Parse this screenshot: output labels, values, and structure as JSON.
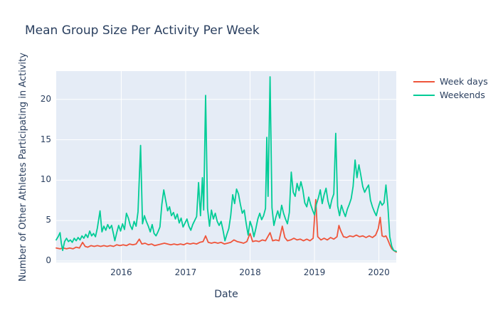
{
  "chart_data": {
    "type": "line",
    "title": "Mean Group Size Per Activity Per Week",
    "xlabel": "Date",
    "ylabel": "Number of Other Athletes Participating in Activity",
    "x_range": [
      2014.99,
      2020.27
    ],
    "y_range": [
      -0.18,
      23.5
    ],
    "x_ticks": [
      2016,
      2017,
      2018,
      2019,
      2020
    ],
    "x_tick_labels": [
      "2016",
      "2017",
      "2018",
      "2019",
      "2020"
    ],
    "y_ticks": [
      0,
      5,
      10,
      15,
      20
    ],
    "y_tick_labels": [
      "0",
      "5",
      "10",
      "15",
      "20"
    ],
    "grid": true,
    "legend_position": "outside-top-right",
    "plot_bg": "#E5ECF6",
    "grid_color": "#FFFFFF",
    "text_color": "#2A3F5F",
    "series": [
      {
        "name": "Week days",
        "color": "#EF553B",
        "points": [
          [
            2014.99,
            1.6
          ],
          [
            2015.05,
            1.5
          ],
          [
            2015.1,
            1.6
          ],
          [
            2015.15,
            1.5
          ],
          [
            2015.2,
            1.6
          ],
          [
            2015.25,
            1.5
          ],
          [
            2015.3,
            1.7
          ],
          [
            2015.35,
            1.6
          ],
          [
            2015.4,
            2.3
          ],
          [
            2015.44,
            1.8
          ],
          [
            2015.48,
            1.7
          ],
          [
            2015.53,
            1.9
          ],
          [
            2015.58,
            1.8
          ],
          [
            2015.63,
            1.9
          ],
          [
            2015.68,
            1.8
          ],
          [
            2015.73,
            1.9
          ],
          [
            2015.78,
            1.8
          ],
          [
            2015.83,
            1.9
          ],
          [
            2015.88,
            1.8
          ],
          [
            2015.93,
            2.0
          ],
          [
            2015.98,
            1.9
          ],
          [
            2016.03,
            2.0
          ],
          [
            2016.08,
            1.9
          ],
          [
            2016.13,
            2.1
          ],
          [
            2016.18,
            2.0
          ],
          [
            2016.23,
            2.1
          ],
          [
            2016.28,
            2.7
          ],
          [
            2016.32,
            2.1
          ],
          [
            2016.37,
            2.2
          ],
          [
            2016.42,
            2.0
          ],
          [
            2016.47,
            2.1
          ],
          [
            2016.52,
            1.9
          ],
          [
            2016.57,
            2.0
          ],
          [
            2016.62,
            2.1
          ],
          [
            2016.67,
            2.2
          ],
          [
            2016.72,
            2.1
          ],
          [
            2016.77,
            2.0
          ],
          [
            2016.82,
            2.1
          ],
          [
            2016.87,
            2.0
          ],
          [
            2016.92,
            2.1
          ],
          [
            2016.97,
            2.0
          ],
          [
            2017.02,
            2.2
          ],
          [
            2017.07,
            2.1
          ],
          [
            2017.12,
            2.2
          ],
          [
            2017.17,
            2.1
          ],
          [
            2017.22,
            2.3
          ],
          [
            2017.27,
            2.4
          ],
          [
            2017.31,
            3.1
          ],
          [
            2017.35,
            2.3
          ],
          [
            2017.4,
            2.2
          ],
          [
            2017.45,
            2.3
          ],
          [
            2017.5,
            2.2
          ],
          [
            2017.55,
            2.3
          ],
          [
            2017.6,
            2.1
          ],
          [
            2017.65,
            2.2
          ],
          [
            2017.7,
            2.3
          ],
          [
            2017.75,
            2.6
          ],
          [
            2017.8,
            2.4
          ],
          [
            2017.85,
            2.3
          ],
          [
            2017.9,
            2.2
          ],
          [
            2017.95,
            2.4
          ],
          [
            2018.0,
            3.4
          ],
          [
            2018.04,
            2.4
          ],
          [
            2018.09,
            2.5
          ],
          [
            2018.14,
            2.4
          ],
          [
            2018.19,
            2.6
          ],
          [
            2018.24,
            2.5
          ],
          [
            2018.31,
            3.5
          ],
          [
            2018.35,
            2.5
          ],
          [
            2018.4,
            2.6
          ],
          [
            2018.45,
            2.5
          ],
          [
            2018.5,
            4.3
          ],
          [
            2018.54,
            2.9
          ],
          [
            2018.58,
            2.5
          ],
          [
            2018.63,
            2.6
          ],
          [
            2018.68,
            2.8
          ],
          [
            2018.73,
            2.6
          ],
          [
            2018.78,
            2.7
          ],
          [
            2018.83,
            2.5
          ],
          [
            2018.88,
            2.7
          ],
          [
            2018.93,
            2.5
          ],
          [
            2018.98,
            2.8
          ],
          [
            2019.02,
            7.6
          ],
          [
            2019.05,
            3.0
          ],
          [
            2019.1,
            2.6
          ],
          [
            2019.15,
            2.8
          ],
          [
            2019.2,
            2.6
          ],
          [
            2019.25,
            2.9
          ],
          [
            2019.3,
            2.7
          ],
          [
            2019.35,
            3.0
          ],
          [
            2019.38,
            4.4
          ],
          [
            2019.41,
            3.7
          ],
          [
            2019.45,
            3.0
          ],
          [
            2019.5,
            2.9
          ],
          [
            2019.55,
            3.1
          ],
          [
            2019.6,
            3.0
          ],
          [
            2019.65,
            3.2
          ],
          [
            2019.7,
            3.0
          ],
          [
            2019.75,
            3.1
          ],
          [
            2019.8,
            2.9
          ],
          [
            2019.85,
            3.1
          ],
          [
            2019.9,
            2.9
          ],
          [
            2019.95,
            3.2
          ],
          [
            2019.99,
            4.0
          ],
          [
            2020.02,
            5.4
          ],
          [
            2020.05,
            3.1
          ],
          [
            2020.08,
            3.0
          ],
          [
            2020.11,
            3.1
          ],
          [
            2020.14,
            2.6
          ],
          [
            2020.17,
            2.0
          ],
          [
            2020.2,
            1.5
          ],
          [
            2020.23,
            1.3
          ],
          [
            2020.27,
            1.1
          ]
        ]
      },
      {
        "name": "Weekends",
        "color": "#00CC96",
        "points": [
          [
            2014.99,
            2.6
          ],
          [
            2015.02,
            3.0
          ],
          [
            2015.05,
            3.5
          ],
          [
            2015.07,
            2.2
          ],
          [
            2015.09,
            1.3
          ],
          [
            2015.12,
            2.4
          ],
          [
            2015.15,
            2.8
          ],
          [
            2015.18,
            2.4
          ],
          [
            2015.21,
            2.6
          ],
          [
            2015.24,
            2.3
          ],
          [
            2015.27,
            2.8
          ],
          [
            2015.3,
            2.5
          ],
          [
            2015.33,
            2.9
          ],
          [
            2015.36,
            2.6
          ],
          [
            2015.39,
            3.1
          ],
          [
            2015.42,
            2.8
          ],
          [
            2015.45,
            3.3
          ],
          [
            2015.48,
            2.9
          ],
          [
            2015.51,
            3.7
          ],
          [
            2015.54,
            3.1
          ],
          [
            2015.57,
            3.4
          ],
          [
            2015.6,
            3.0
          ],
          [
            2015.63,
            4.1
          ],
          [
            2015.67,
            6.2
          ],
          [
            2015.7,
            3.6
          ],
          [
            2015.73,
            4.3
          ],
          [
            2015.76,
            3.8
          ],
          [
            2015.79,
            4.5
          ],
          [
            2015.82,
            4.0
          ],
          [
            2015.85,
            4.4
          ],
          [
            2015.88,
            3.3
          ],
          [
            2015.9,
            2.5
          ],
          [
            2015.93,
            3.5
          ],
          [
            2015.96,
            4.4
          ],
          [
            2015.99,
            3.7
          ],
          [
            2016.02,
            4.6
          ],
          [
            2016.05,
            3.9
          ],
          [
            2016.08,
            5.9
          ],
          [
            2016.11,
            5.3
          ],
          [
            2016.14,
            4.4
          ],
          [
            2016.17,
            3.9
          ],
          [
            2016.2,
            4.9
          ],
          [
            2016.23,
            4.3
          ],
          [
            2016.26,
            6.1
          ],
          [
            2016.3,
            14.3
          ],
          [
            2016.33,
            4.6
          ],
          [
            2016.36,
            5.6
          ],
          [
            2016.39,
            4.9
          ],
          [
            2016.42,
            4.3
          ],
          [
            2016.45,
            3.6
          ],
          [
            2016.48,
            4.5
          ],
          [
            2016.51,
            3.4
          ],
          [
            2016.54,
            3.1
          ],
          [
            2016.57,
            3.6
          ],
          [
            2016.6,
            4.2
          ],
          [
            2016.63,
            7.0
          ],
          [
            2016.66,
            8.8
          ],
          [
            2016.69,
            7.5
          ],
          [
            2016.72,
            6.2
          ],
          [
            2016.75,
            6.7
          ],
          [
            2016.78,
            5.6
          ],
          [
            2016.81,
            6.0
          ],
          [
            2016.84,
            5.2
          ],
          [
            2016.87,
            5.8
          ],
          [
            2016.9,
            4.7
          ],
          [
            2016.93,
            5.3
          ],
          [
            2016.96,
            4.2
          ],
          [
            2016.99,
            4.7
          ],
          [
            2017.02,
            5.2
          ],
          [
            2017.05,
            4.3
          ],
          [
            2017.08,
            3.8
          ],
          [
            2017.11,
            4.5
          ],
          [
            2017.14,
            5.0
          ],
          [
            2017.17,
            5.5
          ],
          [
            2017.2,
            9.7
          ],
          [
            2017.23,
            5.6
          ],
          [
            2017.26,
            10.3
          ],
          [
            2017.28,
            6.3
          ],
          [
            2017.31,
            20.5
          ],
          [
            2017.34,
            6.5
          ],
          [
            2017.37,
            4.3
          ],
          [
            2017.4,
            6.3
          ],
          [
            2017.43,
            5.2
          ],
          [
            2017.46,
            5.9
          ],
          [
            2017.49,
            4.9
          ],
          [
            2017.52,
            4.4
          ],
          [
            2017.55,
            4.9
          ],
          [
            2017.58,
            3.8
          ],
          [
            2017.61,
            2.5
          ],
          [
            2017.64,
            3.3
          ],
          [
            2017.67,
            4.0
          ],
          [
            2017.7,
            5.6
          ],
          [
            2017.73,
            8.2
          ],
          [
            2017.76,
            7.1
          ],
          [
            2017.79,
            8.9
          ],
          [
            2017.82,
            8.3
          ],
          [
            2017.85,
            7.0
          ],
          [
            2017.88,
            5.9
          ],
          [
            2017.91,
            6.3
          ],
          [
            2017.94,
            4.6
          ],
          [
            2017.97,
            3.2
          ],
          [
            2018.0,
            4.9
          ],
          [
            2018.03,
            4.2
          ],
          [
            2018.06,
            3.0
          ],
          [
            2018.09,
            4.0
          ],
          [
            2018.12,
            5.2
          ],
          [
            2018.15,
            5.9
          ],
          [
            2018.18,
            5.1
          ],
          [
            2018.21,
            5.6
          ],
          [
            2018.24,
            6.5
          ],
          [
            2018.26,
            15.3
          ],
          [
            2018.28,
            8.0
          ],
          [
            2018.31,
            22.8
          ],
          [
            2018.34,
            6.6
          ],
          [
            2018.37,
            4.4
          ],
          [
            2018.4,
            5.4
          ],
          [
            2018.43,
            6.2
          ],
          [
            2018.46,
            5.3
          ],
          [
            2018.49,
            6.9
          ],
          [
            2018.52,
            5.9
          ],
          [
            2018.55,
            5.2
          ],
          [
            2018.58,
            4.6
          ],
          [
            2018.61,
            6.0
          ],
          [
            2018.64,
            11.0
          ],
          [
            2018.67,
            8.5
          ],
          [
            2018.7,
            8.0
          ],
          [
            2018.73,
            9.6
          ],
          [
            2018.76,
            8.7
          ],
          [
            2018.79,
            9.8
          ],
          [
            2018.82,
            8.8
          ],
          [
            2018.85,
            7.2
          ],
          [
            2018.88,
            6.7
          ],
          [
            2018.91,
            7.9
          ],
          [
            2018.94,
            7.0
          ],
          [
            2018.97,
            6.3
          ],
          [
            2019.0,
            5.7
          ],
          [
            2019.03,
            7.0
          ],
          [
            2019.06,
            7.8
          ],
          [
            2019.09,
            8.8
          ],
          [
            2019.12,
            7.1
          ],
          [
            2019.15,
            8.2
          ],
          [
            2019.18,
            9.0
          ],
          [
            2019.21,
            7.4
          ],
          [
            2019.24,
            6.5
          ],
          [
            2019.27,
            7.6
          ],
          [
            2019.3,
            8.3
          ],
          [
            2019.33,
            15.8
          ],
          [
            2019.36,
            6.8
          ],
          [
            2019.39,
            5.6
          ],
          [
            2019.42,
            6.9
          ],
          [
            2019.45,
            6.1
          ],
          [
            2019.48,
            5.5
          ],
          [
            2019.51,
            6.4
          ],
          [
            2019.54,
            7.0
          ],
          [
            2019.57,
            7.7
          ],
          [
            2019.6,
            9.2
          ],
          [
            2019.63,
            12.5
          ],
          [
            2019.66,
            10.3
          ],
          [
            2019.69,
            11.9
          ],
          [
            2019.72,
            10.6
          ],
          [
            2019.75,
            9.2
          ],
          [
            2019.78,
            8.5
          ],
          [
            2019.81,
            9.0
          ],
          [
            2019.84,
            9.4
          ],
          [
            2019.87,
            7.5
          ],
          [
            2019.9,
            6.7
          ],
          [
            2019.93,
            6.1
          ],
          [
            2019.96,
            5.6
          ],
          [
            2019.99,
            6.6
          ],
          [
            2020.02,
            7.4
          ],
          [
            2020.05,
            6.9
          ],
          [
            2020.08,
            7.2
          ],
          [
            2020.11,
            9.4
          ],
          [
            2020.14,
            6.8
          ],
          [
            2020.17,
            3.0
          ],
          [
            2020.2,
            1.8
          ],
          [
            2020.23,
            1.3
          ],
          [
            2020.27,
            1.2
          ]
        ]
      }
    ]
  }
}
